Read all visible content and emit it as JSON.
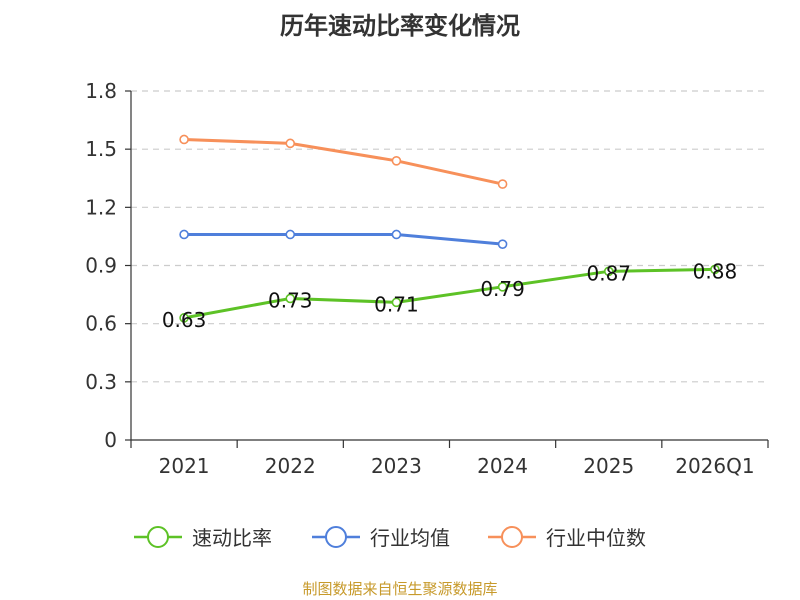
{
  "chart_data": {
    "type": "line",
    "title": "历年速动比率变化情况",
    "xlabel": "",
    "ylabel": "",
    "categories": [
      "2021",
      "2022",
      "2023",
      "2024",
      "2025",
      "2026Q1"
    ],
    "ylim": [
      0,
      1.8
    ],
    "yticks": [
      0,
      0.3,
      0.6,
      0.9,
      1.2,
      1.5,
      1.8
    ],
    "ytick_labels": [
      "0",
      "0.3",
      "0.6",
      "0.9",
      "1.2",
      "1.5",
      "1.8"
    ],
    "grid": true,
    "legend_position": "bottom",
    "series": [
      {
        "name": "速动比率",
        "color": "#5dc226",
        "values": [
          0.63,
          0.73,
          0.71,
          0.79,
          0.87,
          0.88
        ],
        "labels": [
          "0.63",
          "0.73",
          "0.71",
          "0.79",
          "0.87",
          "0.88"
        ]
      },
      {
        "name": "行业均值",
        "color": "#4f7fdb",
        "values": [
          1.06,
          1.06,
          1.06,
          1.01,
          null,
          null
        ]
      },
      {
        "name": "行业中位数",
        "color": "#f7905a",
        "values": [
          1.55,
          1.53,
          1.44,
          1.32,
          null,
          null
        ]
      }
    ]
  },
  "source": "制图数据来自恒生聚源数据库"
}
